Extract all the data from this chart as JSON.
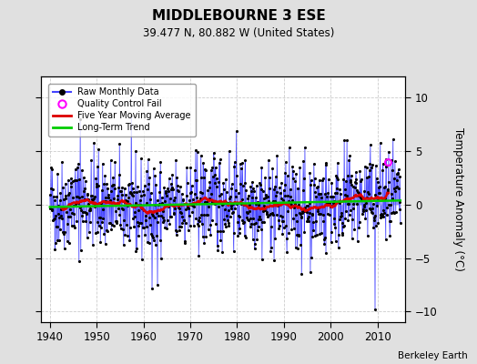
{
  "title": "MIDDLEBOURNE 3 ESE",
  "subtitle": "39.477 N, 80.882 W (United States)",
  "ylabel": "Temperature Anomaly (°C)",
  "attribution": "Berkeley Earth",
  "xlim": [
    1938,
    2016
  ],
  "ylim": [
    -11,
    12
  ],
  "yticks": [
    -10,
    -5,
    0,
    5,
    10
  ],
  "xticks": [
    1940,
    1950,
    1960,
    1970,
    1980,
    1990,
    2000,
    2010
  ],
  "start_year": 1940,
  "end_year": 2014,
  "bg_color": "#e0e0e0",
  "plot_bg_color": "#ffffff",
  "raw_line_color": "#4444ff",
  "raw_dot_color": "#000000",
  "ma_color": "#dd0000",
  "trend_color": "#00cc00",
  "qc_fail_color": "#ff00ff",
  "qc_fail_x": 2012.3,
  "qc_fail_y": 4.0,
  "seed": 42
}
